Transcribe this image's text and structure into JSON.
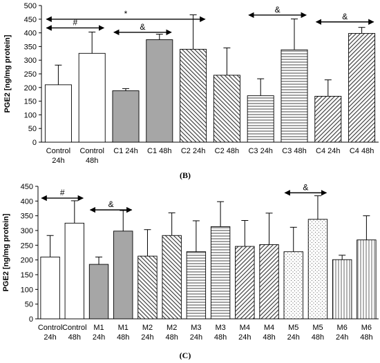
{
  "chart_data": [
    {
      "type": "bar",
      "panel_label": "(B)",
      "ylabel": "PGE2 [ng/mg protein]",
      "ylim": [
        0,
        500
      ],
      "yticks": [
        0,
        50,
        100,
        150,
        200,
        250,
        300,
        350,
        400,
        450,
        500
      ],
      "categories": [
        [
          "Control",
          "24h"
        ],
        [
          "Control",
          "48h"
        ],
        [
          "C1 24h"
        ],
        [
          "C1 48h"
        ],
        [
          "C2 24h"
        ],
        [
          "C2 48h"
        ],
        [
          "C3 24h"
        ],
        [
          "C3 48h"
        ],
        [
          "C4 24h"
        ],
        [
          "C4 48h"
        ]
      ],
      "values": [
        210,
        325,
        188,
        375,
        340,
        245,
        170,
        338,
        168,
        398
      ],
      "errors": [
        72,
        78,
        8,
        20,
        126,
        100,
        62,
        113,
        60,
        22
      ],
      "patterns": [
        "white",
        "white",
        "gray",
        "gray",
        "diag-down",
        "diag-down",
        "horizontal",
        "horizontal",
        "diag-up",
        "diag-up"
      ],
      "annotations": [
        {
          "label": "#",
          "from": 0,
          "to": 1,
          "y": 418
        },
        {
          "label": "*",
          "from": 0,
          "to": 4,
          "y": 450
        },
        {
          "label": "&",
          "from": 2,
          "to": 3,
          "y": 402
        },
        {
          "label": "&",
          "from": 6,
          "to": 7,
          "y": 465
        },
        {
          "label": "&",
          "from": 8,
          "to": 9,
          "y": 440
        }
      ]
    },
    {
      "type": "bar",
      "panel_label": "(C)",
      "ylabel": "PGE2 [ng/mg protein]",
      "ylim": [
        0,
        450
      ],
      "yticks": [
        0,
        50,
        100,
        150,
        200,
        250,
        300,
        350,
        400,
        450
      ],
      "categories": [
        [
          "Control",
          "24h"
        ],
        [
          "Control",
          "48h"
        ],
        [
          "M1",
          "24h"
        ],
        [
          "M1",
          "48h"
        ],
        [
          "M2",
          "24h"
        ],
        [
          "M2",
          "48h"
        ],
        [
          "M3",
          "24h"
        ],
        [
          "M3",
          "48h"
        ],
        [
          "M4",
          "24h"
        ],
        [
          "M4",
          "48h"
        ],
        [
          "M5",
          "24h"
        ],
        [
          "M5",
          "48h"
        ],
        [
          "M6",
          "24h"
        ],
        [
          "M6",
          "48h"
        ]
      ],
      "values": [
        210,
        325,
        185,
        298,
        213,
        283,
        228,
        313,
        246,
        252,
        228,
        338,
        201,
        268
      ],
      "errors": [
        73,
        76,
        25,
        70,
        90,
        77,
        105,
        85,
        88,
        107,
        83,
        80,
        15,
        82
      ],
      "patterns": [
        "white",
        "white",
        "gray",
        "gray",
        "diag-down",
        "diag-down",
        "horizontal",
        "horizontal",
        "diag-up",
        "diag-up",
        "dots",
        "dots",
        "vertical",
        "vertical"
      ],
      "annotations": [
        {
          "label": "#",
          "from": 0,
          "to": 1,
          "y": 410
        },
        {
          "label": "&",
          "from": 2,
          "to": 3,
          "y": 370
        },
        {
          "label": "&",
          "from": 10,
          "to": 11,
          "y": 428
        }
      ]
    }
  ]
}
